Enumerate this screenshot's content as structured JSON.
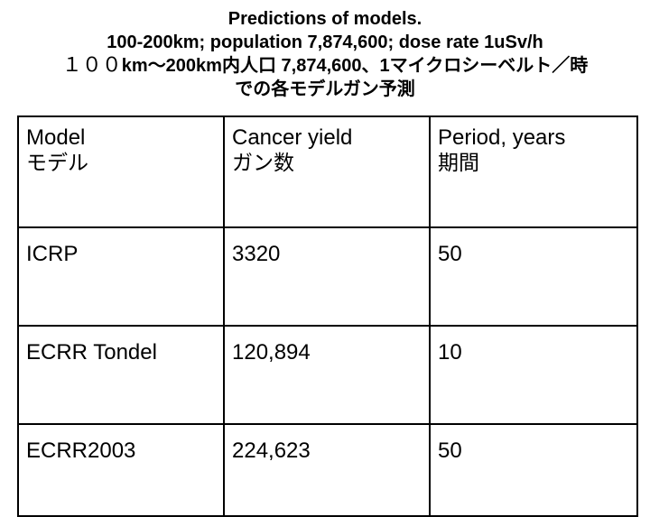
{
  "title": {
    "line1": "Predictions of models.",
    "line2": "100-200km; population 7,874,600; dose rate 1uSv/h",
    "line3_full": "１００",
    "line3_rest": "km〜200km内人口 7,874,600、1マイクロシーベルト／時",
    "line4": "での各モデルガン予測"
  },
  "table": {
    "headers": [
      {
        "en": "Model",
        "jp": "モデル"
      },
      {
        "en": "Cancer yield",
        "jp": "ガン数"
      },
      {
        "en": "Period, years",
        "jp": "期間"
      }
    ],
    "rows": [
      {
        "model": "ICRP",
        "cancer_yield": "3320",
        "period": "50"
      },
      {
        "model": "ECRR Tondel",
        "cancer_yield": "120,894",
        "period": "10"
      },
      {
        "model": "ECRR2003",
        "cancer_yield": "224,623",
        "period": "50"
      }
    ]
  }
}
